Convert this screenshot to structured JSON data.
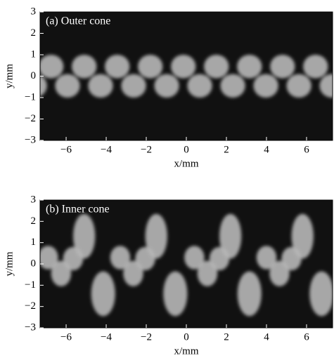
{
  "chart_data": [
    {
      "type": "image",
      "title": "(a)  Outer cone",
      "xlabel": "x/mm",
      "ylabel": "y/mm",
      "xlim": [
        -7.3,
        7.3
      ],
      "ylim": [
        -3,
        3
      ],
      "xticks": [
        {
          "value": -6,
          "label": "−6"
        },
        {
          "value": -4,
          "label": "−4"
        },
        {
          "value": -2,
          "label": "−2"
        },
        0,
        2,
        4,
        6
      ],
      "yticks": [
        {
          "value": -3,
          "label": "−3"
        },
        {
          "value": -2,
          "label": "−2"
        },
        {
          "value": -1,
          "label": "−1"
        },
        0,
        1,
        2,
        3
      ]
    },
    {
      "type": "image",
      "title": "(b)  Inner cone",
      "xlabel": "x/mm",
      "ylabel": "y/mm",
      "xlim": [
        -7.3,
        7.3
      ],
      "ylim": [
        -3,
        3
      ],
      "xticks": [
        {
          "value": -6,
          "label": "−6"
        },
        {
          "value": -4,
          "label": "−4"
        },
        {
          "value": -2,
          "label": "−2"
        },
        0,
        2,
        4,
        6
      ],
      "yticks": [
        {
          "value": -3,
          "label": "−3"
        },
        {
          "value": -2,
          "label": "−2"
        },
        {
          "value": -1,
          "label": "−1"
        },
        0,
        1,
        2,
        3
      ]
    }
  ]
}
